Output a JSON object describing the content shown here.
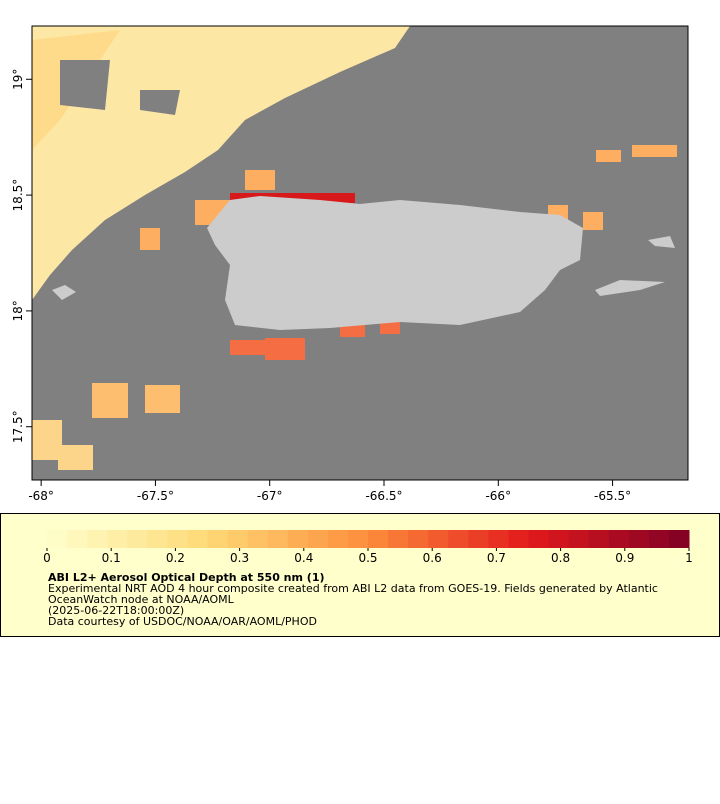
{
  "map": {
    "xlim": [
      -68.04,
      -65.17
    ],
    "ylim": [
      17.27,
      19.23
    ],
    "xticks": [
      {
        "value": -68,
        "label": "-68°"
      },
      {
        "value": -67.5,
        "label": "-67.5°"
      },
      {
        "value": -67,
        "label": "-67°"
      },
      {
        "value": -66.5,
        "label": "-66.5°"
      },
      {
        "value": -66,
        "label": "-66°"
      },
      {
        "value": -65.5,
        "label": "-65.5°"
      }
    ],
    "yticks": [
      {
        "value": 19,
        "label": "19°"
      },
      {
        "value": 18.5,
        "label": "18.5°"
      },
      {
        "value": 18,
        "label": "18°"
      },
      {
        "value": 17.5,
        "label": "17.5°"
      }
    ]
  },
  "legend": {
    "clim": [
      0,
      1
    ],
    "ticks": [
      0,
      0.1,
      0.2,
      0.3,
      0.4,
      0.5,
      0.6,
      0.7,
      0.8,
      0.9,
      1
    ],
    "title": "ABI L2+ Aerosol Optical Depth at 550 nm (1)",
    "lines": [
      "Experimental NRT AOD 4 hour composite created from ABI L2 data from GOES-19. Fields generated by Atlantic",
      "OceanWatch node at NOAA/AOML",
      "(2025-06-22T18:00:00Z)",
      "Data courtesy of USDOC/NOAA/OAR/AOML/PHOD"
    ]
  }
}
